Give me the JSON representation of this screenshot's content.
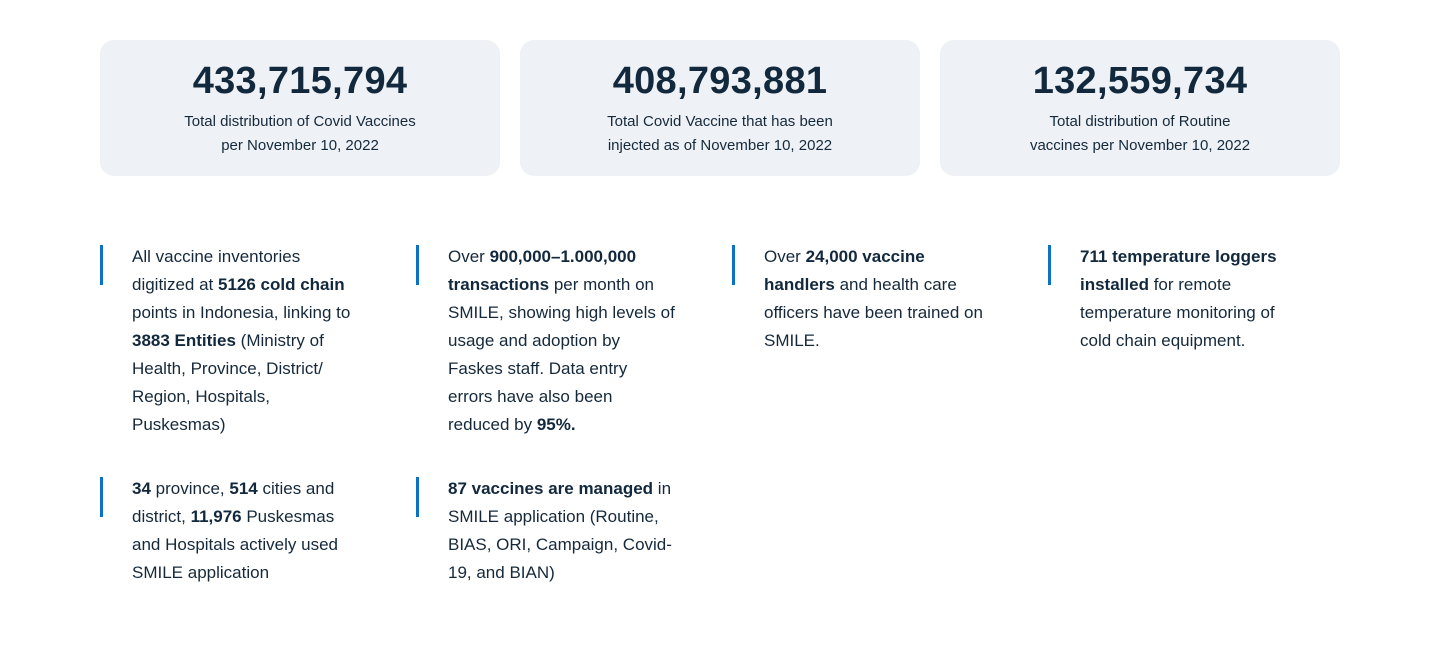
{
  "colors": {
    "accent": "#0C72C6",
    "card_bg": "#EEF1F5",
    "text": "#15293B",
    "text_strong": "#12283D"
  },
  "cards": [
    {
      "value": "433,715,794",
      "label_line1": "Total distribution of Covid Vaccines",
      "label_line2": "per November 10, 2022"
    },
    {
      "value": "408,793,881",
      "label_line1": "Total Covid Vaccine that has been",
      "label_line2": "injected as of November 10, 2022"
    },
    {
      "value": "132,559,734",
      "label_line1": "Total distribution of Routine",
      "label_line2": "vaccines per November 10, 2022"
    }
  ],
  "stats": [
    {
      "segments": [
        {
          "text": "All vaccine inventories digitized at ",
          "bold": false
        },
        {
          "text": "5126 cold chain",
          "bold": true
        },
        {
          "text": " points in Indonesia, linking to ",
          "bold": false
        },
        {
          "text": "3883 Entities",
          "bold": true
        },
        {
          "text": " (Ministry of Health, Province, District/​Region, Hospitals, Puskesmas)",
          "bold": false
        }
      ]
    },
    {
      "segments": [
        {
          "text": "Over ",
          "bold": false
        },
        {
          "text": "900,000–1.000,000 transactions",
          "bold": true
        },
        {
          "text": " per month on SMILE, showing high levels of usage and adoption by Faskes staff. Data entry errors have also been reduced by ",
          "bold": false
        },
        {
          "text": "95%.",
          "bold": true
        }
      ]
    },
    {
      "segments": [
        {
          "text": "Over ",
          "bold": false
        },
        {
          "text": "24,000 vaccine handlers",
          "bold": true
        },
        {
          "text": " and health care officers have been trained on SMILE.",
          "bold": false
        }
      ]
    },
    {
      "segments": [
        {
          "text": "711 temperature loggers installed",
          "bold": true
        },
        {
          "text": " for remote temperature monitoring of cold chain equipment.",
          "bold": false
        }
      ]
    },
    {
      "segments": [
        {
          "text": "34",
          "bold": true
        },
        {
          "text": " province, ",
          "bold": false
        },
        {
          "text": "514",
          "bold": true
        },
        {
          "text": " cities and district, ",
          "bold": false
        },
        {
          "text": "11,976",
          "bold": true
        },
        {
          "text": " Puskesmas and Hospitals actively used SMILE application",
          "bold": false
        }
      ]
    },
    {
      "segments": [
        {
          "text": "87 vaccines are managed",
          "bold": true
        },
        {
          "text": " in SMILE application (Routine, BIAS, ORI, Campaign, Covid-19, and BIAN)",
          "bold": false
        }
      ]
    }
  ]
}
